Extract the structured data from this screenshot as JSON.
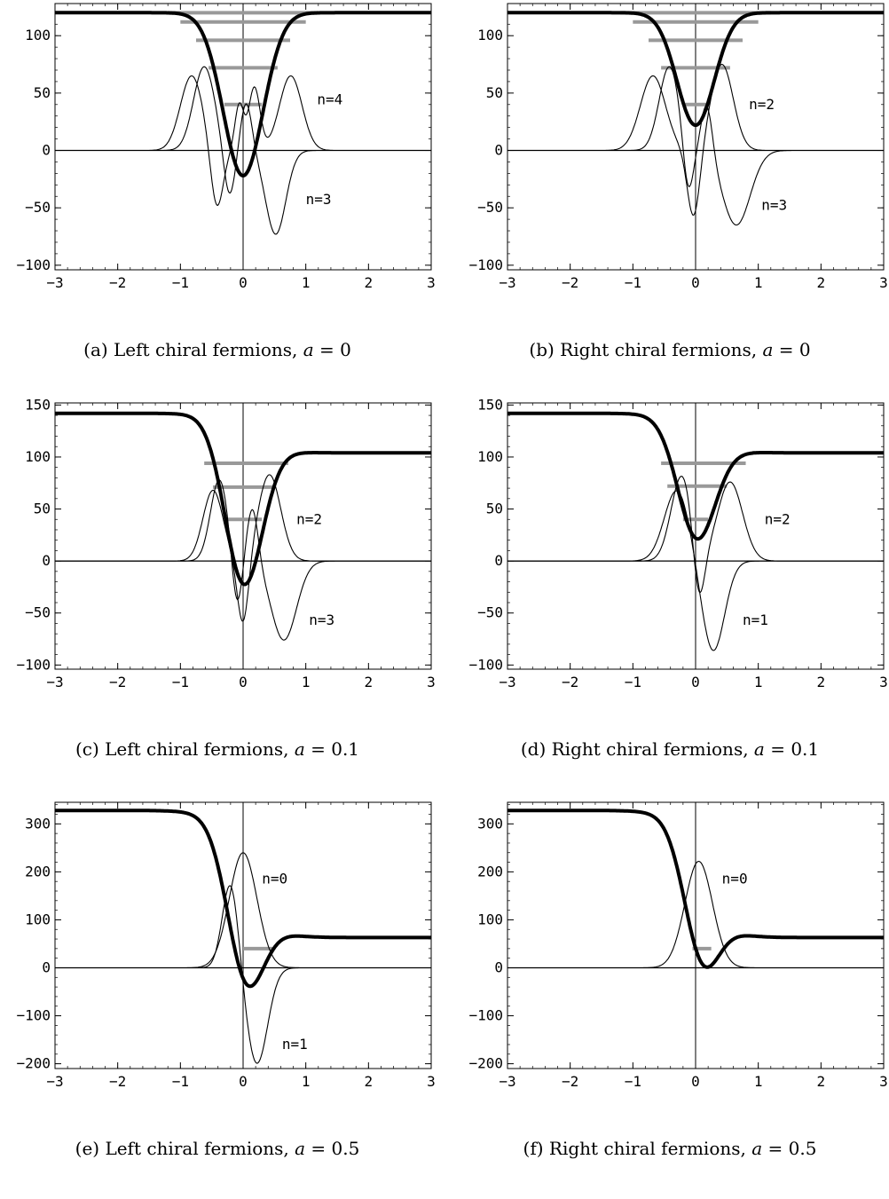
{
  "chart_data": [
    {
      "id": "a",
      "type": "line",
      "caption_prefix": "(a) Left chiral fermions, ",
      "caption_var": "a",
      "caption_value": " = 0",
      "xlim": [
        -3,
        3
      ],
      "ylim": [
        -104,
        128
      ],
      "xticks": [
        -3,
        -2,
        -1,
        0,
        1,
        2,
        3
      ],
      "yticks": [
        -100,
        -50,
        0,
        50,
        100
      ],
      "potential": {
        "left": 120,
        "right": 120,
        "min": -22,
        "min_x": 0,
        "width": 0.45
      },
      "levels": [
        {
          "y": 120,
          "xmin": -1.2,
          "xmax": 1.2
        },
        {
          "y": 112,
          "xmin": -1.0,
          "xmax": 1.0
        },
        {
          "y": 96,
          "xmin": -0.75,
          "xmax": 0.75
        },
        {
          "y": 72,
          "xmin": -0.55,
          "xmax": 0.55
        },
        {
          "y": 40,
          "xmin": -0.3,
          "xmax": 0.3
        }
      ],
      "wavefunctions": [
        {
          "n": 4,
          "lobes": [
            [
              -0.82,
              65,
              0.18
            ],
            [
              -0.42,
              -53,
              0.1
            ],
            [
              -0.06,
              40,
              0.07
            ],
            [
              0.18,
              55,
              0.09
            ],
            [
              0.76,
              65,
              0.18
            ]
          ]
        },
        {
          "n": 3,
          "lobes": [
            [
              -0.62,
              73,
              0.17
            ],
            [
              -0.22,
              -42,
              0.09
            ],
            [
              0.05,
              42,
              0.09
            ],
            [
              0.52,
              -73,
              0.16
            ]
          ]
        }
      ],
      "labels": [
        {
          "text": "n=4",
          "x": 1.18,
          "y": 44
        },
        {
          "text": "n=3",
          "x": 1.0,
          "y": -43
        }
      ]
    },
    {
      "id": "b",
      "type": "line",
      "caption_prefix": "(b) Right chiral fermions, ",
      "caption_var": "a",
      "caption_value": " = 0",
      "xlim": [
        -3,
        3
      ],
      "ylim": [
        -104,
        128
      ],
      "xticks": [
        -3,
        -2,
        -1,
        0,
        1,
        2,
        3
      ],
      "yticks": [
        -100,
        -50,
        0,
        50,
        100
      ],
      "potential": {
        "left": 120,
        "right": 120,
        "min": 22,
        "min_x": 0,
        "width": 0.42
      },
      "levels": [
        {
          "y": 120,
          "xmin": -1.2,
          "xmax": 1.2
        },
        {
          "y": 112,
          "xmin": -1.0,
          "xmax": 1.0
        },
        {
          "y": 96,
          "xmin": -0.75,
          "xmax": 0.75
        },
        {
          "y": 72,
          "xmin": -0.55,
          "xmax": 0.55
        },
        {
          "y": 40,
          "xmin": -0.2,
          "xmax": 0.2
        }
      ],
      "wavefunctions": [
        {
          "n": 2,
          "lobes": [
            [
              -0.68,
              65,
              0.2
            ],
            [
              -0.03,
              -60,
              0.1
            ],
            [
              0.42,
              75,
              0.18
            ]
          ]
        },
        {
          "n": 3,
          "lobes": [
            [
              -0.42,
              73,
              0.16
            ],
            [
              -0.12,
              -43,
              0.08
            ],
            [
              0.18,
              45,
              0.09
            ],
            [
              0.65,
              -65,
              0.22
            ]
          ]
        }
      ],
      "labels": [
        {
          "text": "n=2",
          "x": 0.85,
          "y": 40
        },
        {
          "text": "n=3",
          "x": 1.05,
          "y": -48
        }
      ]
    },
    {
      "id": "c",
      "type": "line",
      "caption_prefix": "(c) Left chiral fermions, ",
      "caption_var": "a",
      "caption_value": " = 0.1",
      "xlim": [
        -3,
        3
      ],
      "ylim": [
        -104,
        152
      ],
      "xticks": [
        -3,
        -2,
        -1,
        0,
        1,
        2,
        3
      ],
      "yticks": [
        -100,
        -50,
        0,
        50,
        100,
        150
      ],
      "potential": {
        "left": 142,
        "right": 104,
        "min": -22,
        "min_x": 0,
        "width": 0.42
      },
      "levels": [
        {
          "y": 94,
          "xmin": -0.62,
          "xmax": 0.72
        },
        {
          "y": 71,
          "xmin": -0.48,
          "xmax": 0.5
        },
        {
          "y": 40,
          "xmin": -0.3,
          "xmax": 0.3
        }
      ],
      "wavefunctions": [
        {
          "n": 2,
          "lobes": [
            [
              -0.48,
              68,
              0.16
            ],
            [
              0.0,
              -64,
              0.09
            ],
            [
              0.42,
              83,
              0.18
            ]
          ]
        },
        {
          "n": 3,
          "lobes": [
            [
              -0.38,
              78,
              0.14
            ],
            [
              -0.1,
              -48,
              0.08
            ],
            [
              0.15,
              53,
              0.09
            ],
            [
              0.65,
              -76,
              0.2
            ]
          ]
        }
      ],
      "labels": [
        {
          "text": "n=2",
          "x": 0.85,
          "y": 40
        },
        {
          "text": "n=3",
          "x": 1.05,
          "y": -57
        }
      ]
    },
    {
      "id": "d",
      "type": "line",
      "caption_prefix": "(d) Right chiral fermions, ",
      "caption_var": "a",
      "caption_value": " = 0.1",
      "xlim": [
        -3,
        3
      ],
      "ylim": [
        -104,
        152
      ],
      "xticks": [
        -3,
        -2,
        -1,
        0,
        1,
        2,
        3
      ],
      "yticks": [
        -100,
        -50,
        0,
        50,
        100,
        150
      ],
      "potential": {
        "left": 142,
        "right": 104,
        "min": 22,
        "min_x": 0,
        "width": 0.42
      },
      "levels": [
        {
          "y": 94,
          "xmin": -0.55,
          "xmax": 0.8
        },
        {
          "y": 72,
          "xmin": -0.45,
          "xmax": 0.5
        },
        {
          "y": 40,
          "xmin": -0.2,
          "xmax": 0.2
        }
      ],
      "wavefunctions": [
        {
          "n": 2,
          "lobes": [
            [
              -0.22,
              82,
              0.17
            ],
            [
              0.05,
              -55,
              0.09
            ],
            [
              0.55,
              76,
              0.2
            ]
          ]
        },
        {
          "n": 1,
          "lobes": [
            [
              -0.3,
              68,
              0.2
            ],
            [
              0.28,
              -87,
              0.18
            ]
          ]
        }
      ],
      "labels": [
        {
          "text": "n=2",
          "x": 1.1,
          "y": 40
        },
        {
          "text": "n=1",
          "x": 0.75,
          "y": -57
        }
      ]
    },
    {
      "id": "e",
      "type": "line",
      "caption_prefix": "(e) Left chiral fermions, ",
      "caption_var": "a",
      "caption_value": " = 0.5",
      "xlim": [
        -3,
        3
      ],
      "ylim": [
        -210,
        345
      ],
      "xticks": [
        -3,
        -2,
        -1,
        0,
        1,
        2,
        3
      ],
      "yticks": [
        -200,
        -100,
        0,
        100,
        200,
        300
      ],
      "potential": {
        "left": 328,
        "right": 63,
        "min": -22,
        "min_x": 0,
        "width": 0.4
      },
      "levels": [
        {
          "y": 40,
          "xmin": 0.0,
          "xmax": 0.5
        }
      ],
      "wavefunctions": [
        {
          "n": 0,
          "lobes": [
            [
              0.0,
              240,
              0.22
            ]
          ]
        },
        {
          "n": 1,
          "lobes": [
            [
              -0.2,
              180,
              0.13
            ],
            [
              0.22,
              -200,
              0.17
            ]
          ]
        }
      ],
      "labels": [
        {
          "text": "n=0",
          "x": 0.3,
          "y": 185
        },
        {
          "text": "n=1",
          "x": 0.62,
          "y": -160
        }
      ]
    },
    {
      "id": "f",
      "type": "line",
      "caption_prefix": "(f) Right chiral fermions, ",
      "caption_var": "a",
      "caption_value": " = 0.5",
      "xlim": [
        -3,
        3
      ],
      "ylim": [
        -210,
        345
      ],
      "xticks": [
        -3,
        -2,
        -1,
        0,
        1,
        2,
        3
      ],
      "yticks": [
        -200,
        -100,
        0,
        100,
        200,
        300
      ],
      "potential": {
        "left": 328,
        "right": 63,
        "min": 22,
        "min_x": 0.05,
        "width": 0.38
      },
      "levels": [
        {
          "y": 40,
          "xmin": -0.05,
          "xmax": 0.25
        }
      ],
      "wavefunctions": [
        {
          "n": 0,
          "lobes": [
            [
              0.05,
              222,
              0.22
            ]
          ]
        }
      ],
      "labels": [
        {
          "text": "n=0",
          "x": 0.42,
          "y": 185
        }
      ]
    }
  ]
}
